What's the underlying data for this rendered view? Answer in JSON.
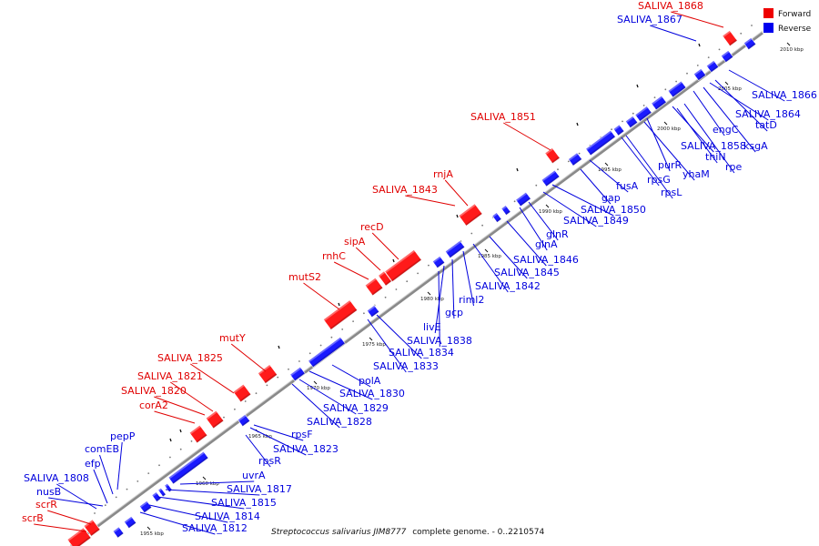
{
  "caption": {
    "species": "Streptococcus salivarius JIM8777",
    "rest": "complete genome. - 0..2210574"
  },
  "legend": [
    {
      "label": "Forward",
      "color": "#ff0000"
    },
    {
      "label": "Reverse",
      "color": "#0000ff"
    }
  ],
  "colors": {
    "forward": "#ff1a1a",
    "reverse": "#1a1aff",
    "backbone": "#8a8a8a"
  },
  "ticks": [
    "1955 kbp",
    "1960 kbp",
    "1965 kbp",
    "1970 kbp",
    "1975 kbp",
    "1980 kbp",
    "1985 kbp",
    "1990 kbp",
    "1995 kbp",
    "2000 kbp",
    "2005 kbp",
    "2010 kbp"
  ],
  "forward_genes": [
    "scrB",
    "scrR",
    "mutY",
    "SALIVA_1825",
    "SALIVA_1821",
    "SALIVA_1820",
    "corA2",
    "mutS2",
    "rnhC",
    "sipA",
    "recD",
    "SALIVA_1843",
    "rnjA",
    "SALIVA_1851",
    "SALIVA_1868"
  ],
  "reverse_genes": [
    "SALIVA_1808",
    "nusB",
    "efp",
    "comEB",
    "pepP",
    "SALIVA_1812",
    "SALIVA_1814",
    "SALIVA_1815",
    "SALIVA_1817",
    "uvrA",
    "rpsR",
    "SALIVA_1823",
    "rpsF",
    "SALIVA_1828",
    "SALIVA_1829",
    "SALIVA_1830",
    "polA",
    "SALIVA_1833",
    "SALIVA_1834",
    "SALIVA_1838",
    "livE",
    "gcp",
    "riml2",
    "SALIVA_1842",
    "SALIVA_1845",
    "SALIVA_1846",
    "glnA",
    "glnR",
    "SALIVA_1849",
    "SALIVA_1850",
    "gap",
    "fusA",
    "rpsL",
    "rpsG",
    "yhaM",
    "purR",
    "thiN",
    "rpe",
    "SALIVA_1858",
    "ksgA",
    "engC",
    "tatD",
    "SALIVA_1864",
    "SALIVA_1866",
    "SALIVA_1867"
  ]
}
